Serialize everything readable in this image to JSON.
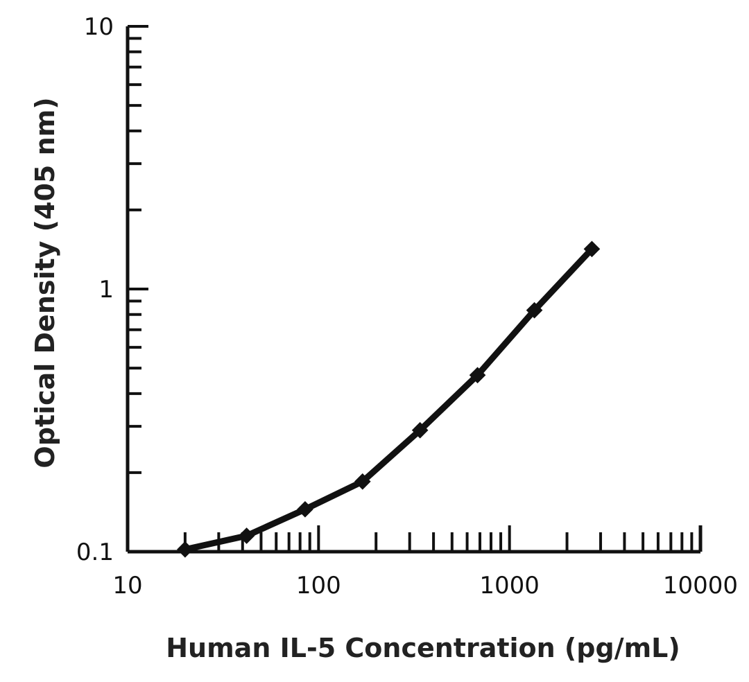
{
  "chart_data": {
    "type": "line",
    "xlabel": "Human IL-5 Concentration (pg/mL)",
    "ylabel": "Optical Density (405 nm)",
    "xscale": "log",
    "yscale": "log",
    "xlim": [
      10,
      10000
    ],
    "ylim": [
      0.1,
      10
    ],
    "x_tick_labels": [
      "10",
      "100",
      "1000",
      "10000"
    ],
    "y_tick_labels": [
      "0.1",
      "1",
      "10"
    ],
    "grid": false,
    "legend": "none",
    "series": [
      {
        "x": [
          20,
          42,
          85,
          170,
          340,
          680,
          1350,
          2700
        ],
        "y": [
          0.102,
          0.115,
          0.145,
          0.185,
          0.29,
          0.47,
          0.83,
          1.42
        ]
      }
    ]
  }
}
